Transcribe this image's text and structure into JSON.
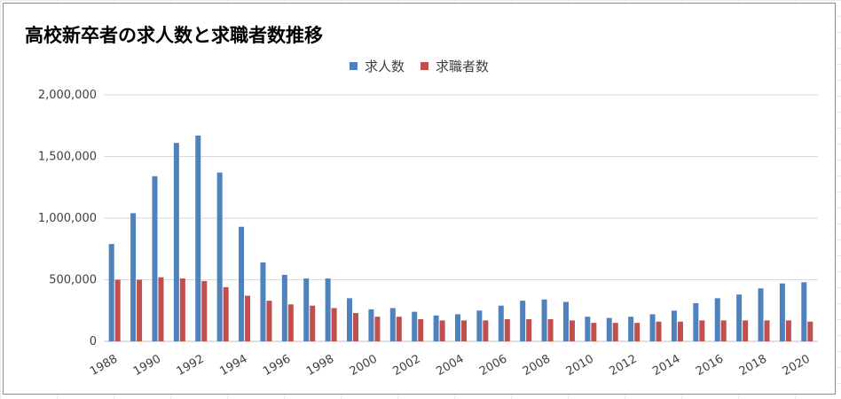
{
  "chart_data": {
    "type": "bar",
    "title": "高校新卒者の求人数と求職者数推移",
    "legend_position": "top",
    "grid": true,
    "ylim": [
      0,
      2000000
    ],
    "yticks": [
      "0",
      "500,000",
      "1,000,000",
      "1,500,000",
      "2,000,000"
    ],
    "xtick_labels": [
      "1988",
      "1990",
      "1992",
      "1994",
      "1996",
      "1998",
      "2000",
      "2002",
      "2004",
      "2006",
      "2008",
      "2010",
      "2012",
      "2014",
      "2016",
      "2018",
      "2020"
    ],
    "categories": [
      "1988",
      "1989",
      "1990",
      "1991",
      "1992",
      "1993",
      "1994",
      "1995",
      "1996",
      "1997",
      "1998",
      "1999",
      "2000",
      "2001",
      "2002",
      "2003",
      "2004",
      "2005",
      "2006",
      "2007",
      "2008",
      "2009",
      "2010",
      "2011",
      "2012",
      "2013",
      "2014",
      "2015",
      "2016",
      "2017",
      "2018",
      "2019",
      "2020"
    ],
    "series": [
      {
        "name": "求人数",
        "color": "#4f81bd",
        "values": [
          790000,
          1040000,
          1340000,
          1610000,
          1670000,
          1370000,
          930000,
          640000,
          540000,
          510000,
          510000,
          350000,
          260000,
          270000,
          240000,
          210000,
          220000,
          250000,
          290000,
          330000,
          340000,
          320000,
          200000,
          190000,
          200000,
          220000,
          250000,
          310000,
          350000,
          380000,
          430000,
          470000,
          480000
        ]
      },
      {
        "name": "求職者数",
        "color": "#c0504d",
        "values": [
          500000,
          500000,
          520000,
          510000,
          490000,
          440000,
          370000,
          330000,
          300000,
          290000,
          270000,
          230000,
          200000,
          200000,
          180000,
          170000,
          170000,
          170000,
          180000,
          180000,
          180000,
          170000,
          150000,
          150000,
          150000,
          160000,
          160000,
          170000,
          170000,
          170000,
          170000,
          170000,
          160000
        ]
      }
    ]
  }
}
